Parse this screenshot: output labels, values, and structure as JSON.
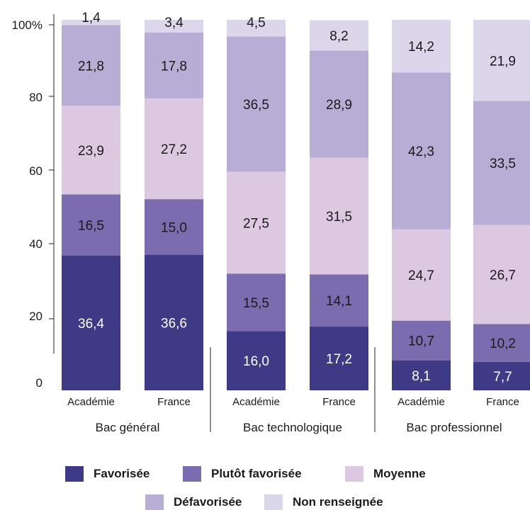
{
  "chart_data": {
    "type": "bar",
    "stacked": true,
    "y_ticks": [
      "100%",
      "80",
      "60",
      "40",
      "20",
      "0"
    ],
    "ylim": [
      0,
      100
    ],
    "groups": [
      {
        "label": "Bac général",
        "bars": [
          {
            "label": "Académie",
            "values": [
              36.4,
              16.5,
              23.9,
              21.8,
              1.4
            ],
            "labels": [
              "36,4",
              "16,5",
              "23,9",
              "21,8",
              "1,4"
            ]
          },
          {
            "label": "France",
            "values": [
              36.6,
              15.0,
              27.2,
              17.8,
              3.4
            ],
            "labels": [
              "36,6",
              "15,0",
              "27,2",
              "17,8",
              "3,4"
            ]
          }
        ]
      },
      {
        "label": "Bac technologique",
        "bars": [
          {
            "label": "Académie",
            "values": [
              16.0,
              15.5,
              27.5,
              36.5,
              4.5
            ],
            "labels": [
              "16,0",
              "15,5",
              "27,5",
              "36,5",
              "4,5"
            ]
          },
          {
            "label": "France",
            "values": [
              17.2,
              14.1,
              31.5,
              28.9,
              8.2
            ],
            "labels": [
              "17,2",
              "14,1",
              "31,5",
              "28,9",
              "8,2"
            ]
          }
        ]
      },
      {
        "label": "Bac professionnel",
        "bars": [
          {
            "label": "Académie",
            "values": [
              8.1,
              10.7,
              24.7,
              42.3,
              14.2
            ],
            "labels": [
              "8,1",
              "10,7",
              "24,7",
              "42,3",
              "14,2"
            ]
          },
          {
            "label": "France",
            "values": [
              7.7,
              10.2,
              26.7,
              33.5,
              21.9
            ],
            "labels": [
              "7,7",
              "10,2",
              "26,7",
              "33,5",
              "21,9"
            ]
          }
        ]
      }
    ],
    "series": [
      {
        "name": "Favorisée",
        "color": "#3e3a85"
      },
      {
        "name": "Plutôt favorisée",
        "color": "#7b6cb0"
      },
      {
        "name": "Moyenne",
        "color": "#dcc8e0"
      },
      {
        "name": "Défavorisée",
        "color": "#b8add4"
      },
      {
        "name": "Non renseignée",
        "color": "#dcd6ea"
      }
    ],
    "legend_position": "bottom",
    "grid": false
  }
}
